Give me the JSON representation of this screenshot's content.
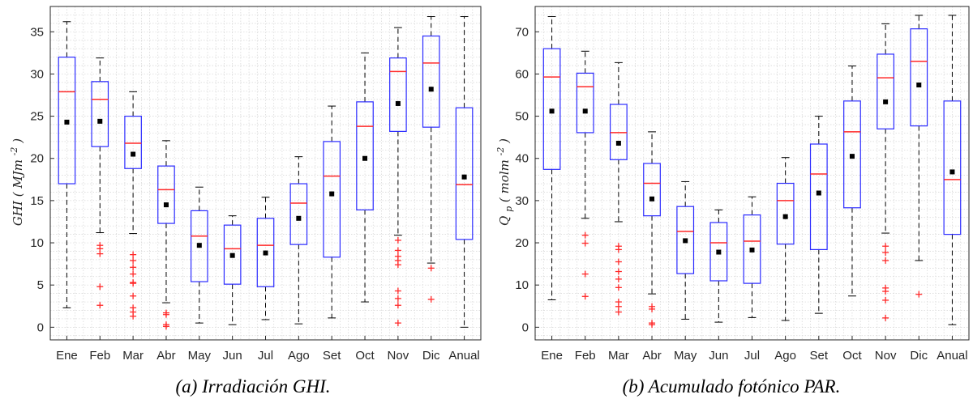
{
  "colors": {
    "box": "#2b2bff",
    "median": "#ff2a2a",
    "outlier": "#ff2a2a",
    "mean": "#000000",
    "whisker": "#000000",
    "grid": "#d4d4d4",
    "axis": "#262626"
  },
  "chart_data": [
    {
      "type": "box",
      "caption": "(a) Irradiación GHI.",
      "ylabel_main": "GHI",
      "ylabel_unit_base": "MJm",
      "ylabel_unit_exp": "-2",
      "ylim": [
        -1.5,
        38
      ],
      "yticks": [
        0,
        5,
        10,
        15,
        20,
        25,
        30,
        35
      ],
      "grid": "minor dotted",
      "categories": [
        "Ene",
        "Feb",
        "Mar",
        "Abr",
        "May",
        "Jun",
        "Jul",
        "Ago",
        "Set",
        "Oct",
        "Nov",
        "Dic",
        "Anual"
      ],
      "boxes": [
        {
          "min": 2.3,
          "q1": 17.0,
          "median": 27.9,
          "q3": 32.0,
          "max": 36.2,
          "mean": 24.3,
          "outliers": []
        },
        {
          "min": 11.2,
          "q1": 21.4,
          "median": 27.0,
          "q3": 29.1,
          "max": 31.9,
          "mean": 24.4,
          "outliers": [
            9.7,
            9.3,
            8.7,
            4.8,
            2.6
          ]
        },
        {
          "min": 11.1,
          "q1": 18.8,
          "median": 21.8,
          "q3": 25.0,
          "max": 27.9,
          "mean": 20.5,
          "outliers": [
            8.6,
            7.9,
            7.1,
            6.3,
            5.3,
            5.2,
            3.7,
            2.3,
            1.8,
            1.3
          ]
        },
        {
          "min": 2.9,
          "q1": 12.3,
          "median": 16.3,
          "q3": 19.1,
          "max": 22.1,
          "mean": 14.5,
          "outliers": [
            1.7,
            1.5,
            0.3,
            0.1
          ]
        },
        {
          "min": 0.5,
          "q1": 5.4,
          "median": 10.8,
          "q3": 13.8,
          "max": 16.6,
          "mean": 9.7,
          "outliers": []
        },
        {
          "min": 0.3,
          "q1": 5.1,
          "median": 9.3,
          "q3": 12.1,
          "max": 13.2,
          "mean": 8.5,
          "outliers": []
        },
        {
          "min": 0.9,
          "q1": 4.8,
          "median": 9.7,
          "q3": 12.9,
          "max": 15.4,
          "mean": 8.8,
          "outliers": []
        },
        {
          "min": 0.4,
          "q1": 9.8,
          "median": 14.7,
          "q3": 17.0,
          "max": 20.2,
          "mean": 12.9,
          "outliers": []
        },
        {
          "min": 1.1,
          "q1": 8.3,
          "median": 17.9,
          "q3": 22.0,
          "max": 26.2,
          "mean": 15.8,
          "outliers": []
        },
        {
          "min": 3.0,
          "q1": 13.9,
          "median": 23.8,
          "q3": 26.7,
          "max": 32.5,
          "mean": 20.0,
          "outliers": []
        },
        {
          "min": 10.9,
          "q1": 23.2,
          "median": 30.3,
          "q3": 31.9,
          "max": 35.5,
          "mean": 26.5,
          "outliers": [
            10.3,
            9.1,
            8.4,
            7.9,
            7.4,
            4.3,
            3.4,
            2.6,
            0.5
          ]
        },
        {
          "min": 7.6,
          "q1": 23.7,
          "median": 31.3,
          "q3": 34.5,
          "max": 36.8,
          "mean": 28.2,
          "outliers": [
            7.0,
            3.3
          ]
        },
        {
          "min": 0.0,
          "q1": 10.4,
          "median": 16.9,
          "q3": 26.0,
          "max": 36.8,
          "mean": 17.8,
          "outliers": []
        }
      ]
    },
    {
      "type": "box",
      "caption": "(b) Acumulado fotónico PAR.",
      "ylabel_main": "Q",
      "ylabel_sub": "p",
      "ylabel_unit_base": "molm",
      "ylabel_unit_exp": "-2",
      "ylim": [
        -3,
        76
      ],
      "yticks": [
        0,
        10,
        20,
        30,
        40,
        50,
        60,
        70
      ],
      "grid": "minor dotted",
      "categories": [
        "Ene",
        "Feb",
        "Mar",
        "Abr",
        "May",
        "Jun",
        "Jul",
        "Ago",
        "Set",
        "Oct",
        "Nov",
        "Dic",
        "Anual"
      ],
      "boxes": [
        {
          "min": 6.5,
          "q1": 37.4,
          "median": 59.3,
          "q3": 66.0,
          "max": 73.6,
          "mean": 51.2,
          "outliers": []
        },
        {
          "min": 25.8,
          "q1": 46.1,
          "median": 57.0,
          "q3": 60.2,
          "max": 65.4,
          "mean": 51.2,
          "outliers": [
            21.8,
            19.9,
            12.6,
            7.3
          ]
        },
        {
          "min": 25.0,
          "q1": 39.7,
          "median": 46.1,
          "q3": 52.8,
          "max": 62.7,
          "mean": 43.6,
          "outliers": [
            19.2,
            18.4,
            15.5,
            13.2,
            11.4,
            9.4,
            6.0,
            4.9,
            3.6
          ]
        },
        {
          "min": 7.9,
          "q1": 26.4,
          "median": 34.1,
          "q3": 38.8,
          "max": 46.3,
          "mean": 30.4,
          "outliers": [
            4.9,
            4.3,
            1.0,
            0.6
          ]
        },
        {
          "min": 1.9,
          "q1": 12.7,
          "median": 22.7,
          "q3": 28.6,
          "max": 34.5,
          "mean": 20.5,
          "outliers": []
        },
        {
          "min": 1.2,
          "q1": 11.0,
          "median": 20.0,
          "q3": 24.8,
          "max": 27.8,
          "mean": 17.8,
          "outliers": []
        },
        {
          "min": 2.3,
          "q1": 10.4,
          "median": 20.4,
          "q3": 26.6,
          "max": 30.9,
          "mean": 18.3,
          "outliers": []
        },
        {
          "min": 1.6,
          "q1": 19.7,
          "median": 30.0,
          "q3": 34.1,
          "max": 40.2,
          "mean": 26.2,
          "outliers": []
        },
        {
          "min": 3.3,
          "q1": 18.4,
          "median": 36.3,
          "q3": 43.4,
          "max": 50.0,
          "mean": 31.8,
          "outliers": []
        },
        {
          "min": 7.4,
          "q1": 28.3,
          "median": 46.3,
          "q3": 53.6,
          "max": 61.9,
          "mean": 40.5,
          "outliers": []
        },
        {
          "min": 22.3,
          "q1": 47.0,
          "median": 59.1,
          "q3": 64.7,
          "max": 71.9,
          "mean": 53.4,
          "outliers": [
            19.2,
            17.7,
            15.8,
            9.3,
            8.5,
            6.4,
            2.2
          ]
        },
        {
          "min": 15.8,
          "q1": 47.7,
          "median": 63.0,
          "q3": 70.7,
          "max": 73.9,
          "mean": 57.4,
          "outliers": [
            7.8
          ]
        },
        {
          "min": 0.6,
          "q1": 22.0,
          "median": 35.0,
          "q3": 53.6,
          "max": 73.9,
          "mean": 36.8,
          "outliers": []
        }
      ]
    }
  ]
}
